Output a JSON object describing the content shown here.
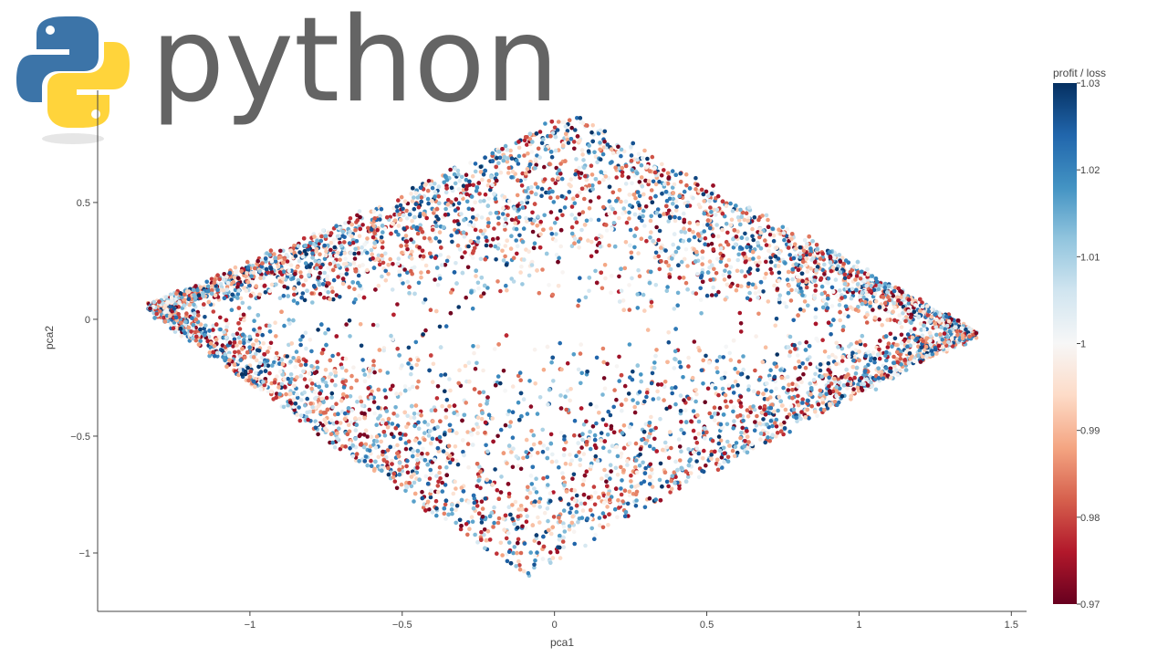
{
  "logo": {
    "wordmark": "python",
    "icon": "python-snake-logo-icon"
  },
  "colors": {
    "plot_bg": "#ffffff",
    "axis_line": "#444444",
    "wordmark": "#646464"
  },
  "chart_data": {
    "type": "scatter",
    "xlabel": "pca1",
    "ylabel": "pca2",
    "xlim": [
      -1.5,
      1.55
    ],
    "ylim": [
      -1.25,
      0.98
    ],
    "x_ticks": [
      -1,
      -0.5,
      0,
      0.5,
      1,
      1.5
    ],
    "x_tick_labels": [
      "−1",
      "−0.5",
      "0",
      "0.5",
      "1",
      "1.5"
    ],
    "y_ticks": [
      -1,
      -0.5,
      0,
      0.5
    ],
    "y_tick_labels": [
      "−1",
      "−0.5",
      "0",
      "0.5"
    ],
    "grid": false,
    "marker": "circle",
    "point_cloud": {
      "shape": "diamond",
      "left_vertex": [
        -1.33,
        0.05
      ],
      "right_vertex": [
        1.38,
        -0.06
      ],
      "top_vertex": [
        0.05,
        0.88
      ],
      "bottom_vertex": [
        -0.1,
        -1.1
      ],
      "color_field": "profit / loss",
      "color_range": [
        0.97,
        1.03
      ]
    },
    "colorbar": {
      "title": "profit / loss",
      "min": 0.97,
      "max": 1.03,
      "ticks": [
        0.97,
        0.98,
        0.99,
        1,
        1.01,
        1.02,
        1.03
      ],
      "tick_labels": [
        "0.97",
        "0.98",
        "0.99",
        "1",
        "1.01",
        "1.02",
        "1.03"
      ],
      "colorscale": [
        "#67001f",
        "#b2182b",
        "#d6604d",
        "#f4a582",
        "#fddbc7",
        "#f7f7f7",
        "#d1e5f0",
        "#92c5de",
        "#4393c3",
        "#2166ac",
        "#053061"
      ]
    }
  }
}
